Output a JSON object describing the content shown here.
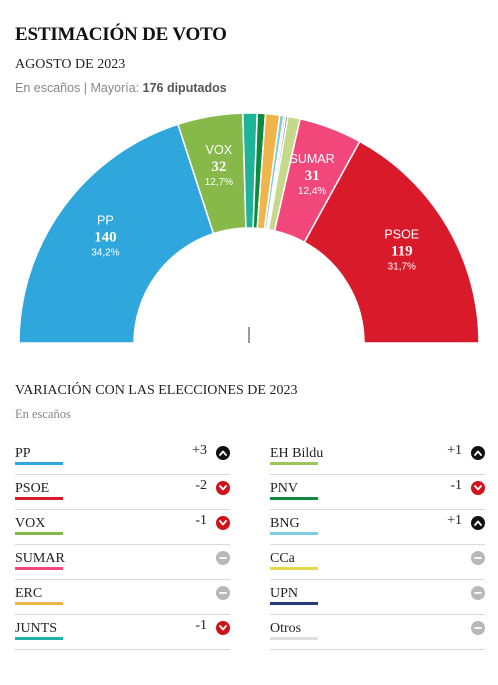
{
  "header": {
    "title": "ESTIMACIÓN DE VOTO",
    "subtitle": "AGOSTO DE 2023",
    "note_prefix": "En escaños | Mayoría: ",
    "note_majority": "176 diputados"
  },
  "chart_data": {
    "type": "pie",
    "subtype": "hemicycle",
    "total_seats": 350,
    "majority": 176,
    "segments": [
      {
        "party": "PP",
        "seats": 140,
        "pct": "34,2%",
        "color": "#2fa6dc",
        "label": true
      },
      {
        "party": "VOX",
        "seats": 32,
        "pct": "12,7%",
        "color": "#86b94a",
        "label": true
      },
      {
        "party": "EH Bildu",
        "seats": 7,
        "color": "#1fb39a",
        "label": false
      },
      {
        "party": "PNV",
        "seats": 4,
        "color": "#0c8b3f",
        "label": false
      },
      {
        "party": "ERC",
        "seats": 7,
        "color": "#f0b44a",
        "label": false
      },
      {
        "party": "BNG",
        "seats": 2,
        "color": "#7ecbe6",
        "label": false
      },
      {
        "party": "CCa",
        "seats": 1,
        "color": "#e6d84a",
        "label": false
      },
      {
        "party": "UPN",
        "seats": 1,
        "color": "#243a7a",
        "label": false
      },
      {
        "party": "JUNTS",
        "seats": 6,
        "color": "#c6d98a",
        "label": false
      },
      {
        "party": "SUMAR",
        "seats": 31,
        "pct": "12,4%",
        "color": "#f2477b",
        "label": true
      },
      {
        "party": "PSOE",
        "seats": 119,
        "pct": "31,7%",
        "color": "#d81a2a",
        "label": true
      }
    ]
  },
  "variation": {
    "title": "VARIACIÓN CON LAS ELECCIONES DE 2023",
    "note": "En escaños",
    "left": [
      {
        "party": "PP",
        "delta": "+3",
        "trend": "up",
        "color": "#2fa6dc"
      },
      {
        "party": "PSOE",
        "delta": "-2",
        "trend": "down",
        "color": "#d81a2a"
      },
      {
        "party": "VOX",
        "delta": "-1",
        "trend": "down",
        "color": "#86b94a"
      },
      {
        "party": "SUMAR",
        "delta": "",
        "trend": "same",
        "color": "#f2477b"
      },
      {
        "party": "ERC",
        "delta": "",
        "trend": "same",
        "color": "#f0b44a"
      },
      {
        "party": "JUNTS",
        "delta": "-1",
        "trend": "down",
        "color": "#1fb3a8"
      }
    ],
    "right": [
      {
        "party": "EH Bildu",
        "delta": "+1",
        "trend": "up",
        "color": "#9cc65a"
      },
      {
        "party": "PNV",
        "delta": "-1",
        "trend": "down",
        "color": "#0c8b3f"
      },
      {
        "party": "BNG",
        "delta": "+1",
        "trend": "up",
        "color": "#7ecbe6"
      },
      {
        "party": "CCa",
        "delta": "",
        "trend": "same",
        "color": "#e6d84a"
      },
      {
        "party": "UPN",
        "delta": "",
        "trend": "same",
        "color": "#243a7a"
      },
      {
        "party": "Otros",
        "delta": "",
        "trend": "same",
        "color": "#e0e0e0"
      }
    ]
  }
}
